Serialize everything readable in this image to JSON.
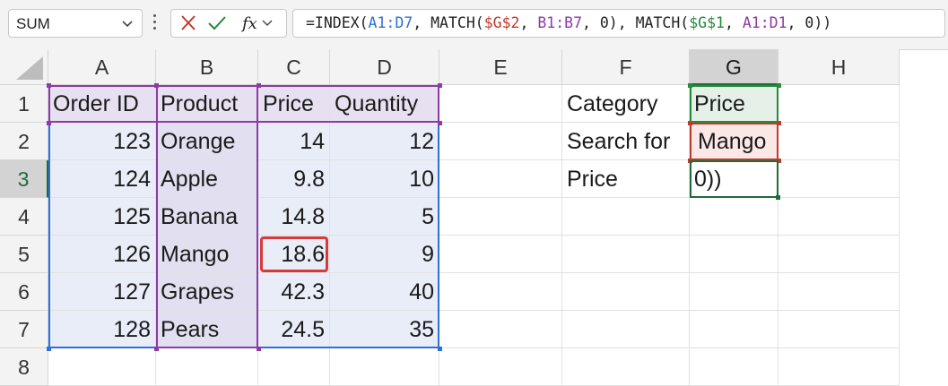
{
  "name_box": {
    "value": "SUM"
  },
  "formula_bar": {
    "cancel_icon": "x-icon",
    "enter_icon": "check-icon",
    "function_icon": "fx-icon",
    "tokens": [
      {
        "text": "=INDEX(",
        "color": "default"
      },
      {
        "text": "A1:D7",
        "color": "blue"
      },
      {
        "text": ", MATCH(",
        "color": "default"
      },
      {
        "text": "$G$2",
        "color": "red"
      },
      {
        "text": ", ",
        "color": "default"
      },
      {
        "text": "B1:B7",
        "color": "purple"
      },
      {
        "text": ", 0), MATCH(",
        "color": "default"
      },
      {
        "text": "$G$1",
        "color": "green"
      },
      {
        "text": ", ",
        "color": "default"
      },
      {
        "text": "A1:D1",
        "color": "purple"
      },
      {
        "text": ", 0))",
        "color": "default"
      }
    ]
  },
  "colors": {
    "blue": "#2f6fd6",
    "red": "#c0392b",
    "purple": "#8e3aa6",
    "green": "#228b3a",
    "selected_header": "#1e6b3a"
  },
  "columns": [
    "A",
    "B",
    "C",
    "D",
    "E",
    "F",
    "G",
    "H"
  ],
  "rows": [
    "1",
    "2",
    "3",
    "4",
    "5",
    "6",
    "7",
    "8"
  ],
  "cells": {
    "A1": "Order ID",
    "B1": "Product",
    "C1": "Price",
    "D1": "Quantity",
    "A2": "123",
    "B2": "Orange",
    "C2": "14",
    "D2": "12",
    "A3": "124",
    "B3": "Apple",
    "C3": "9.8",
    "D3": "10",
    "A4": "125",
    "B4": "Banana",
    "C4": "14.8",
    "D4": "5",
    "A5": "126",
    "B5": "Mango",
    "C5": "18.6",
    "D5": "9",
    "A6": "127",
    "B6": "Grapes",
    "C6": "42.3",
    "D6": "40",
    "A7": "128",
    "B7": "Pears",
    "C7": "24.5",
    "D7": "35",
    "F1": "Category",
    "G1": "Price",
    "F2": "Search for",
    "G2": "Mango",
    "F3": "Price",
    "G3": "0))"
  },
  "active_cell": "G3",
  "highlighted_cell": "C5"
}
